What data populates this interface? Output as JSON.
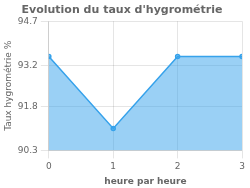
{
  "chart_data": {
    "type": "area",
    "title": "Evolution du taux d'hygrométrie",
    "xlabel": "heure par heure",
    "ylabel": "Taux hygrométrie %",
    "x": [
      0,
      1,
      2,
      3
    ],
    "values": [
      93.5,
      91.05,
      93.5,
      93.5
    ],
    "xlim": [
      0,
      3
    ],
    "ylim": [
      90.3,
      94.7
    ],
    "xticks": [
      0,
      1,
      2,
      3
    ],
    "yticks": [
      90.3,
      91.8,
      93.2,
      94.7
    ],
    "grid": true
  }
}
